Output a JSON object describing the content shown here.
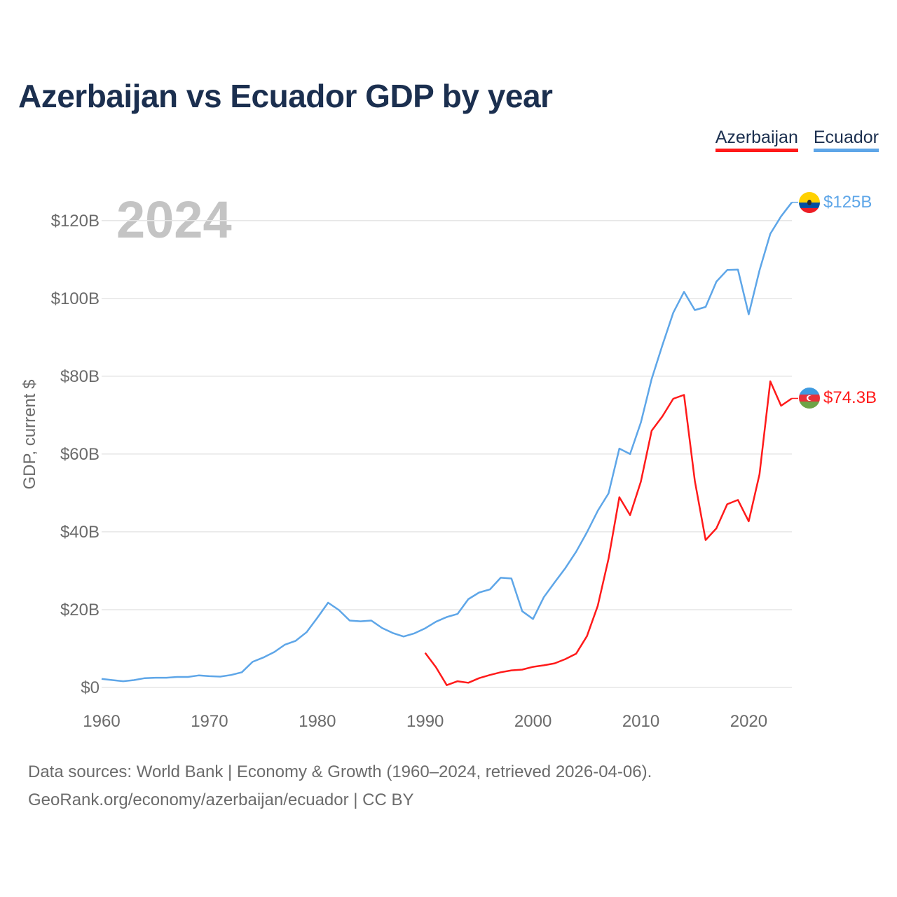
{
  "title": "Azerbaijan vs Ecuador GDP by year",
  "legend": [
    {
      "name": "Azerbaijan",
      "color": "#ff1a1a"
    },
    {
      "name": "Ecuador",
      "color": "#5ea6e8"
    }
  ],
  "year_watermark": "2024",
  "footer": {
    "line1": "Data sources: World Bank | Economy & Growth (1960–2024, retrieved 2026-04-06).",
    "line2": "GeoRank.org/economy/azerbaijan/ecuador | CC BY"
  },
  "chart_data": {
    "type": "line",
    "title": "Azerbaijan vs Ecuador GDP by year",
    "xlabel": "",
    "ylabel": "GDP, current $",
    "xlim": [
      1960,
      2024
    ],
    "ylim": [
      0,
      125
    ],
    "x_ticks": [
      1960,
      1970,
      1980,
      1990,
      2000,
      2010,
      2020
    ],
    "y_ticks": [
      {
        "value": 0,
        "label": "$0"
      },
      {
        "value": 20,
        "label": "$20B"
      },
      {
        "value": 40,
        "label": "$40B"
      },
      {
        "value": 60,
        "label": "$60B"
      },
      {
        "value": 80,
        "label": "$80B"
      },
      {
        "value": 100,
        "label": "$100B"
      },
      {
        "value": 120,
        "label": "$120B"
      }
    ],
    "units": "billions of current US$",
    "series": [
      {
        "name": "Ecuador",
        "color": "#5ea6e8",
        "end_label": "$125B",
        "years": [
          1960,
          1961,
          1962,
          1963,
          1964,
          1965,
          1966,
          1967,
          1968,
          1969,
          1970,
          1971,
          1972,
          1973,
          1974,
          1975,
          1976,
          1977,
          1978,
          1979,
          1980,
          1981,
          1982,
          1983,
          1984,
          1985,
          1986,
          1987,
          1988,
          1989,
          1990,
          1991,
          1992,
          1993,
          1994,
          1995,
          1996,
          1997,
          1998,
          1999,
          2000,
          2001,
          2002,
          2003,
          2004,
          2005,
          2006,
          2007,
          2008,
          2009,
          2010,
          2011,
          2012,
          2013,
          2014,
          2015,
          2016,
          2017,
          2018,
          2019,
          2020,
          2021,
          2022,
          2023,
          2024
        ],
        "values": [
          2.2,
          1.9,
          1.6,
          1.9,
          2.4,
          2.5,
          2.5,
          2.7,
          2.7,
          3.1,
          2.9,
          2.8,
          3.2,
          3.9,
          6.6,
          7.7,
          9.1,
          11.0,
          12.0,
          14.2,
          17.9,
          21.8,
          19.9,
          17.2,
          17.0,
          17.2,
          15.3,
          14.0,
          13.1,
          13.9,
          15.2,
          16.9,
          18.1,
          18.9,
          22.7,
          24.4,
          25.2,
          28.2,
          28.0,
          19.6,
          17.6,
          23.2,
          27.0,
          30.7,
          34.9,
          39.9,
          45.4,
          49.9,
          61.4,
          60.0,
          68.1,
          79.3,
          88.0,
          96.3,
          101.7,
          97.0,
          97.8,
          104.3,
          107.3,
          107.4,
          95.9,
          107.2,
          116.6,
          121.1,
          124.7
        ]
      },
      {
        "name": "Azerbaijan",
        "color": "#ff1a1a",
        "end_label": "$74.3B",
        "years": [
          1990,
          1991,
          1992,
          1993,
          1994,
          1995,
          1996,
          1997,
          1998,
          1999,
          2000,
          2001,
          2002,
          2003,
          2004,
          2005,
          2006,
          2007,
          2008,
          2009,
          2010,
          2011,
          2012,
          2013,
          2014,
          2015,
          2016,
          2017,
          2018,
          2019,
          2020,
          2021,
          2022,
          2023,
          2024
        ],
        "values": [
          8.9,
          5.2,
          0.6,
          1.6,
          1.2,
          2.4,
          3.2,
          3.9,
          4.4,
          4.6,
          5.3,
          5.7,
          6.2,
          7.3,
          8.7,
          13.2,
          21.0,
          33.1,
          48.9,
          44.3,
          52.9,
          66.0,
          69.7,
          74.2,
          75.2,
          53.1,
          37.9,
          40.9,
          47.1,
          48.2,
          42.7,
          54.8,
          78.7,
          72.4,
          74.3
        ]
      }
    ]
  }
}
